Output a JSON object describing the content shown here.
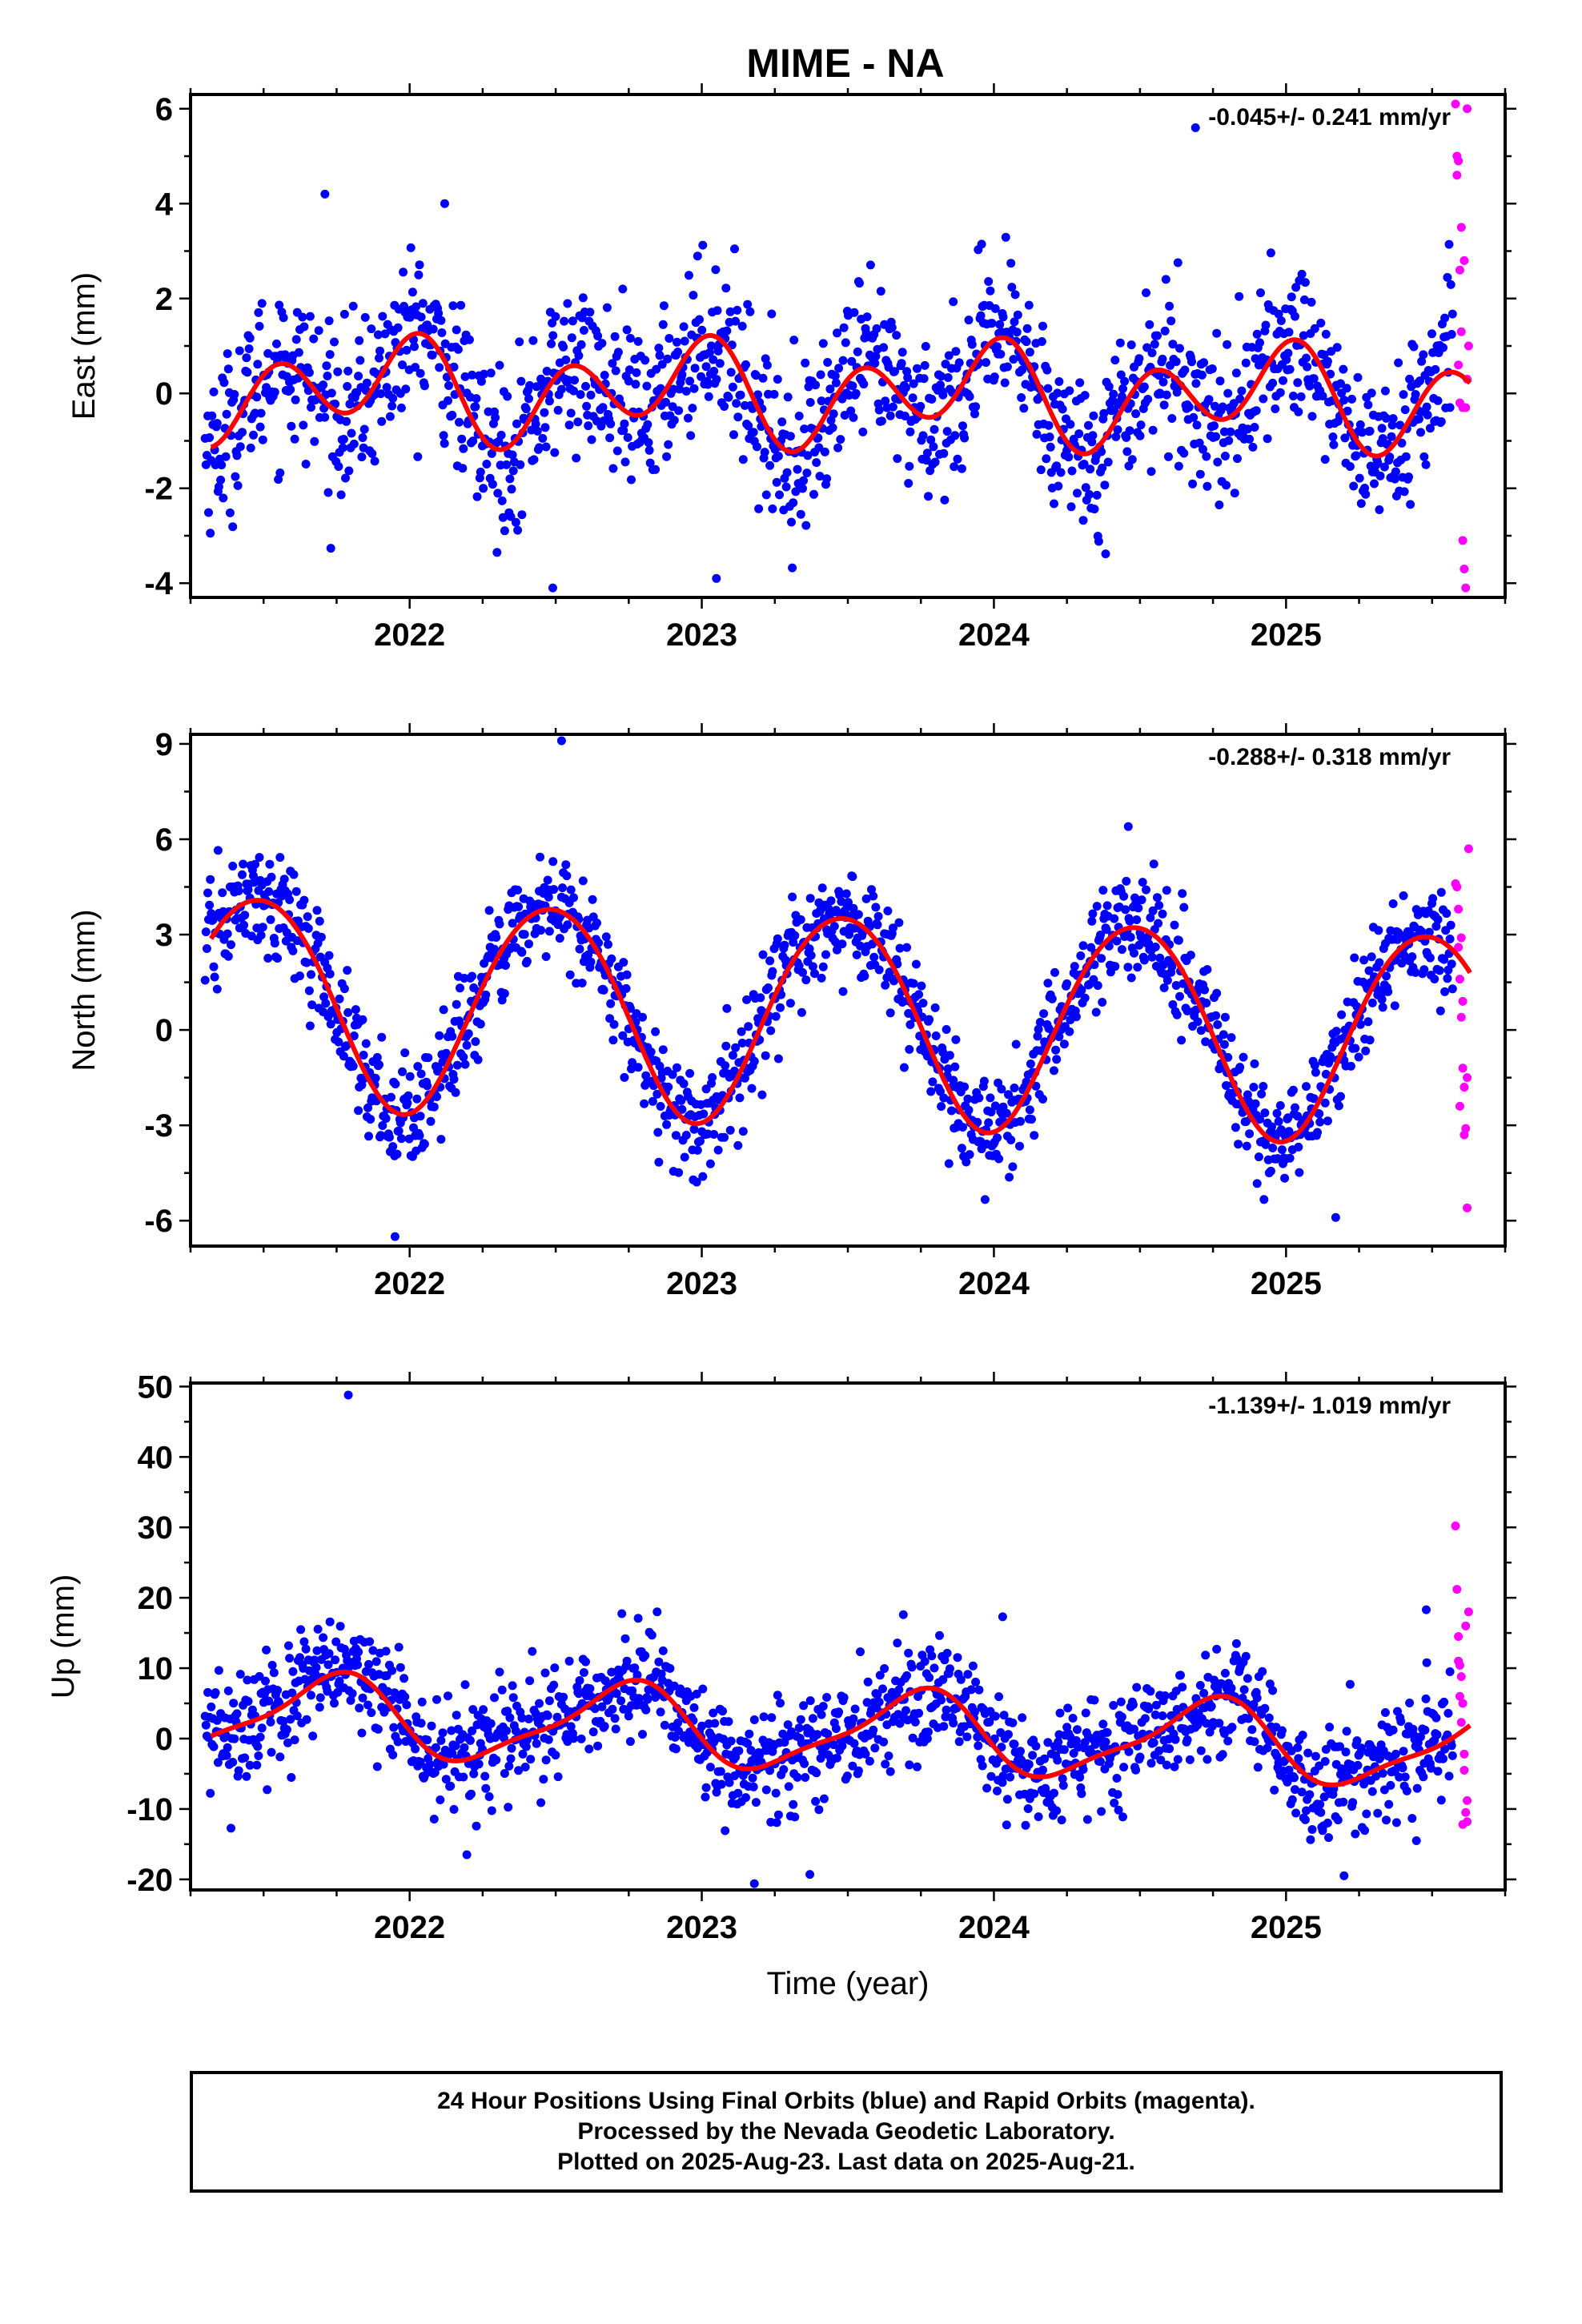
{
  "title": "MIME - NA",
  "colors": {
    "final_orbits": "#0000ff",
    "rapid_orbits": "#ff00ff",
    "model_fit": "#ff0000",
    "frame": "#000000"
  },
  "caption": {
    "line1": "24 Hour Positions Using Final Orbits (blue) and Rapid Orbits (magenta).",
    "line2": "Processed by the Nevada Geodetic Laboratory.",
    "line3": "Plotted on 2025-Aug-23. Last data on 2025-Aug-21."
  },
  "chart_data": [
    {
      "type": "scatter",
      "component": "east",
      "ylabel": "East (mm)",
      "xlabel": "",
      "xlim": [
        2021.25,
        2025.75
      ],
      "ylim": [
        -4.3,
        6.3
      ],
      "xticks": [
        2022,
        2023,
        2024,
        2025
      ],
      "yticks": [
        -4,
        -2,
        0,
        2,
        4,
        6
      ],
      "rate": "-0.045+/- 0.241 mm/yr",
      "grid": false,
      "series": [
        {
          "name": "Final Orbits",
          "style": "points",
          "color": "#0000ff",
          "model": {
            "offset": 0.0,
            "trend": -0.045,
            "a1": 0.5,
            "p1": 0.66,
            "a2": 0.85,
            "p2": 0.42,
            "noise": 0.85
          },
          "x_range": [
            2021.3,
            2025.57
          ],
          "n": 1450
        },
        {
          "name": "Rapid Orbits",
          "style": "points",
          "color": "#ff00ff",
          "values_x": [
            2025.58,
            2025.585,
            2025.59,
            2025.595,
            2025.6,
            2025.605,
            2025.61,
            2025.615,
            2025.62,
            2025.625,
            2025.59,
            2025.6,
            2025.61,
            2025.62,
            2025.605,
            2025.595,
            2025.585,
            2025.615
          ],
          "values_y": [
            6.1,
            5.0,
            4.9,
            2.6,
            1.3,
            -3.1,
            -3.7,
            -4.1,
            0.3,
            1.0,
            0.6,
            3.5,
            2.8,
            6.0,
            -0.3,
            -0.2,
            4.6,
            -0.3
          ]
        },
        {
          "name": "Model fit",
          "style": "line",
          "color": "#ff0000",
          "model": {
            "offset": 0.0,
            "trend": -0.045,
            "a1": 0.5,
            "p1": 0.66,
            "a2": 0.85,
            "p2": 0.42
          }
        }
      ],
      "outliers_x": [
        2021.71,
        2022.12,
        2024.69,
        2022.49,
        2023.05
      ],
      "outliers_y": [
        4.2,
        4.0,
        5.6,
        -4.1,
        -3.9
      ]
    },
    {
      "type": "scatter",
      "component": "north",
      "ylabel": "North (mm)",
      "xlabel": "",
      "xlim": [
        2021.25,
        2025.75
      ],
      "ylim": [
        -6.8,
        9.3
      ],
      "xticks": [
        2022,
        2023,
        2024,
        2025
      ],
      "yticks": [
        -6,
        -3,
        0,
        3,
        6,
        9
      ],
      "rate": "-0.288+/- 0.318 mm/yr",
      "grid": false,
      "series": [
        {
          "name": "Final Orbits",
          "style": "points",
          "color": "#0000ff",
          "model": {
            "offset": 0.4,
            "trend": -0.288,
            "a1": 3.3,
            "p1": 0.23,
            "a2": 0.2,
            "p2": 0.1,
            "noise": 0.85
          },
          "x_range": [
            2021.3,
            2025.57
          ],
          "n": 1450
        },
        {
          "name": "Rapid Orbits",
          "style": "points",
          "color": "#ff00ff",
          "values_x": [
            2025.58,
            2025.585,
            2025.59,
            2025.595,
            2025.6,
            2025.605,
            2025.61,
            2025.615,
            2025.62,
            2025.625,
            2025.59,
            2025.6,
            2025.61,
            2025.62,
            2025.605,
            2025.595
          ],
          "values_y": [
            4.6,
            4.5,
            2.6,
            1.6,
            0.4,
            -1.2,
            -1.8,
            -3.1,
            -5.6,
            5.7,
            3.8,
            2.9,
            -3.3,
            -1.5,
            0.9,
            -2.4
          ]
        },
        {
          "name": "Model fit",
          "style": "line",
          "color": "#ff0000",
          "model": {
            "offset": 0.4,
            "trend": -0.288,
            "a1": 3.3,
            "p1": 0.23,
            "a2": 0.2,
            "p2": 0.1
          }
        }
      ],
      "outliers_x": [
        2022.52,
        2024.46,
        2021.95,
        2025.17
      ],
      "outliers_y": [
        9.1,
        6.4,
        -6.5,
        -5.9
      ]
    },
    {
      "type": "scatter",
      "component": "up",
      "ylabel": "Up (mm)",
      "xlabel": "Time (year)",
      "xlim": [
        2021.25,
        2025.75
      ],
      "ylim": [
        -21.5,
        50.5
      ],
      "xticks": [
        2022,
        2023,
        2024,
        2025
      ],
      "yticks": [
        -20,
        -10,
        0,
        10,
        20,
        30,
        40,
        50
      ],
      "rate": "-1.139+/- 1.019 mm/yr",
      "grid": false,
      "series": [
        {
          "name": "Final Orbits",
          "style": "points",
          "color": "#0000ff",
          "model": {
            "offset": 1.0,
            "trend": -1.139,
            "a1": 5.5,
            "p1": 0.48,
            "a2": 1.5,
            "p2": 0.2,
            "noise": 4.0
          },
          "x_range": [
            2021.3,
            2025.57
          ],
          "n": 1450
        },
        {
          "name": "Rapid Orbits",
          "style": "points",
          "color": "#ff00ff",
          "values_x": [
            2025.58,
            2025.585,
            2025.59,
            2025.595,
            2025.6,
            2025.605,
            2025.61,
            2025.615,
            2025.62,
            2025.625,
            2025.59,
            2025.6,
            2025.61,
            2025.62,
            2025.605,
            2025.595,
            2025.615
          ],
          "values_y": [
            30.2,
            21.2,
            14.5,
            10.4,
            8.8,
            5.0,
            -4.5,
            -10.5,
            -11.8,
            18.0,
            11.0,
            2.3,
            -2.2,
            -8.8,
            -12.2,
            6.0,
            16.0
          ]
        },
        {
          "name": "Model fit",
          "style": "line",
          "color": "#ff0000",
          "model": {
            "offset": 1.0,
            "trend": -1.139,
            "a1": 5.5,
            "p1": 0.48,
            "a2": 1.5,
            "p2": 0.2
          }
        }
      ],
      "outliers_x": [
        2021.79,
        2023.69,
        2024.03,
        2025.48,
        2023.18,
        2023.37
      ],
      "outliers_y": [
        48.8,
        17.6,
        17.3,
        18.3,
        -20.6,
        -19.3
      ]
    }
  ]
}
